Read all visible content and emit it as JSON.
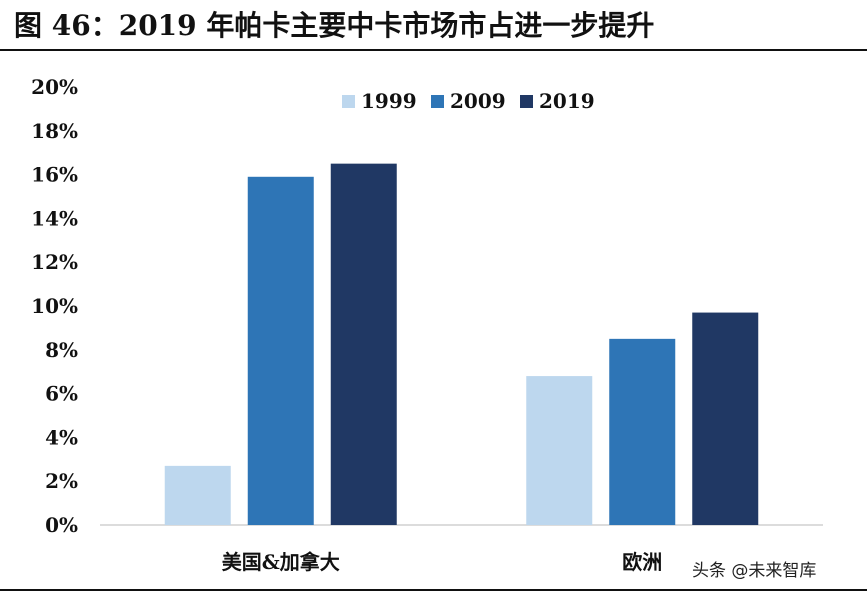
{
  "header": {
    "title": "图 46：2019 年帕卡主要中卡市场市占进一步提升"
  },
  "watermark": "头条 @未来智库",
  "chart_data": {
    "type": "bar",
    "categories": [
      "美国&加拿大",
      "欧洲"
    ],
    "series": [
      {
        "name": "1999",
        "values": [
          2.7,
          6.8
        ],
        "color": "#bdd7ee"
      },
      {
        "name": "2009",
        "values": [
          15.9,
          8.5
        ],
        "color": "#2e75b6"
      },
      {
        "name": "2019",
        "values": [
          16.5,
          9.7
        ],
        "color": "#203864"
      }
    ],
    "yticks": [
      "0%",
      "2%",
      "4%",
      "6%",
      "8%",
      "10%",
      "12%",
      "14%",
      "16%",
      "18%",
      "20%"
    ],
    "ylim": [
      0,
      20
    ],
    "ylabel_unit": "%",
    "legend_position": "top-center",
    "grid": false
  }
}
